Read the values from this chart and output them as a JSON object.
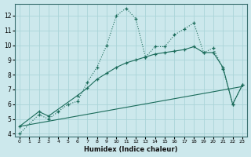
{
  "xlabel": "Humidex (Indice chaleur)",
  "bg_color": "#cce8ec",
  "grid_color": "#aad4d8",
  "line_color": "#1a6b5a",
  "xlim": [
    -0.5,
    23.5
  ],
  "ylim": [
    3.8,
    12.8
  ],
  "xticks": [
    0,
    1,
    2,
    3,
    4,
    5,
    6,
    7,
    8,
    9,
    10,
    11,
    12,
    13,
    14,
    15,
    16,
    17,
    18,
    19,
    20,
    21,
    22,
    23
  ],
  "yticks": [
    4,
    5,
    6,
    7,
    8,
    9,
    10,
    11,
    12
  ],
  "curve1_x": [
    0,
    2,
    3,
    4,
    5,
    6,
    7,
    8,
    9,
    10,
    11,
    12,
    13,
    14,
    15,
    16,
    17,
    18,
    19,
    20,
    21,
    22,
    23
  ],
  "curve1_y": [
    4.0,
    5.3,
    5.0,
    5.5,
    6.0,
    6.2,
    7.5,
    8.5,
    10.0,
    12.0,
    12.5,
    11.8,
    9.2,
    9.9,
    9.9,
    10.7,
    11.1,
    11.5,
    9.5,
    9.8,
    8.4,
    6.0,
    7.3
  ],
  "curve2_x": [
    0,
    2,
    3,
    6,
    7,
    8,
    9,
    10,
    11,
    12,
    13,
    14,
    15,
    16,
    17,
    18,
    19,
    20,
    21,
    22,
    23
  ],
  "curve2_y": [
    4.5,
    5.5,
    5.2,
    6.6,
    7.1,
    7.7,
    8.1,
    8.5,
    8.8,
    9.0,
    9.2,
    9.4,
    9.5,
    9.6,
    9.7,
    9.9,
    9.5,
    9.5,
    8.5,
    6.0,
    7.3
  ],
  "line3_x": [
    0,
    23
  ],
  "line3_y": [
    4.5,
    7.2
  ]
}
